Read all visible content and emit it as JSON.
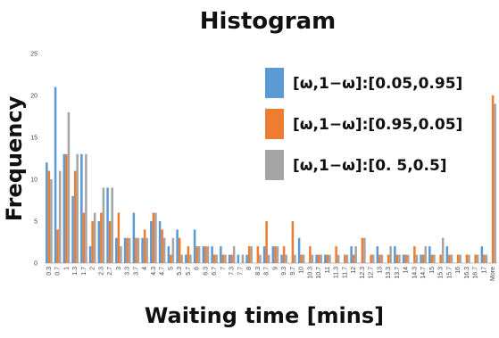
{
  "chart_data": {
    "type": "bar",
    "title": "Histogram",
    "xlabel": "Waiting time [mins]",
    "ylabel": "Frequency",
    "ylim": [
      0,
      25
    ],
    "yticks": [
      0,
      5,
      10,
      15,
      20,
      25
    ],
    "grid": false,
    "legend_position": "top-right",
    "categories": [
      "0.3",
      "0.7",
      "1",
      "1.3",
      "1.7",
      "2",
      "2.3",
      "2.7",
      "3",
      "3.3",
      "3.7",
      "4",
      "4.3",
      "4.7",
      "5",
      "5.3",
      "5.7",
      "6",
      "6.3",
      "6.7",
      "7",
      "7.3",
      "7.7",
      "8",
      "8.3",
      "8.7",
      "9",
      "9.3",
      "9.7",
      "10",
      "10.3",
      "10.7",
      "11",
      "11.3",
      "11.7",
      "12",
      "12.3",
      "12.7",
      "13",
      "13.3",
      "13.7",
      "14",
      "14.3",
      "14.7",
      "15",
      "15.3",
      "15.7",
      "16",
      "16.3",
      "16.7",
      "17",
      "More"
    ],
    "series": [
      {
        "name": "[ω,1−ω]:[0.05,0.95]",
        "color": "#5B9BD5",
        "values": [
          12,
          21,
          13,
          8,
          13,
          2,
          5,
          9,
          3,
          3,
          6,
          3,
          5,
          5,
          2,
          4,
          1,
          4,
          2,
          2,
          2,
          1,
          1,
          1,
          0,
          2,
          2,
          1,
          0,
          3,
          0,
          1,
          1,
          0,
          0,
          2,
          0,
          0,
          2,
          0,
          2,
          1,
          0,
          1,
          2,
          0,
          2,
          0,
          0,
          0,
          2,
          0
        ]
      },
      {
        "name": "[ω,1−ω]:[0.95,0.05]",
        "color": "#ED7D31",
        "values": [
          11,
          4,
          13,
          11,
          6,
          5,
          6,
          5,
          6,
          3,
          3,
          4,
          6,
          4,
          1,
          3,
          2,
          2,
          2,
          1,
          1,
          1,
          0,
          2,
          2,
          5,
          2,
          2,
          5,
          1,
          2,
          1,
          1,
          2,
          1,
          1,
          3,
          1,
          1,
          1,
          1,
          1,
          2,
          1,
          1,
          1,
          1,
          1,
          1,
          1,
          1,
          20
        ]
      },
      {
        "name": "[ω,1−ω]:[0. 5,0.5]",
        "color": "#A5A5A5",
        "values": [
          10,
          11,
          18,
          13,
          13,
          6,
          9,
          9,
          2,
          3,
          3,
          3,
          6,
          3,
          3,
          1,
          1,
          2,
          2,
          1,
          1,
          2,
          1,
          2,
          1,
          1,
          2,
          1,
          1,
          1,
          1,
          1,
          1,
          1,
          1,
          2,
          3,
          1,
          1,
          2,
          1,
          1,
          1,
          2,
          1,
          3,
          1,
          1,
          1,
          1,
          1,
          19
        ]
      }
    ]
  }
}
